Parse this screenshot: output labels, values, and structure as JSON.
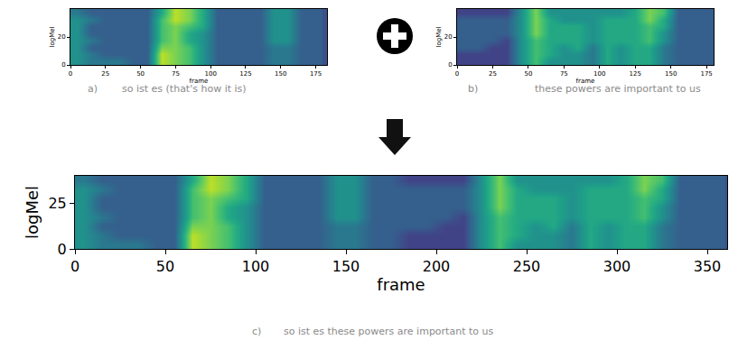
{
  "chart_data": [
    {
      "type": "heatmap",
      "caption_label": "a)",
      "caption": "so ist es (that's how it is)",
      "x_label": "frame",
      "y_label": "logMel",
      "xlim": [
        0,
        183
      ],
      "xticks": [
        0,
        25,
        50,
        75,
        100,
        125,
        150,
        175
      ],
      "ylim": [
        0,
        40
      ],
      "yticks": [
        0,
        20
      ],
      "zlim": [
        0,
        10
      ],
      "x": [
        5,
        15,
        25,
        35,
        45,
        55,
        65,
        75,
        85,
        95,
        105,
        115,
        125,
        135,
        145,
        155,
        165,
        175
      ],
      "y": [
        2.5,
        7.5,
        12.5,
        17.5,
        22.5,
        27.5,
        32.5,
        37.5
      ],
      "cells": [
        [
          5,
          4,
          4,
          4,
          3,
          3,
          9,
          8,
          7,
          5,
          3,
          3,
          3,
          3,
          4,
          4,
          3,
          3
        ],
        [
          5,
          4,
          3,
          3,
          3,
          3,
          9,
          8,
          7,
          5,
          3,
          3,
          3,
          3,
          4,
          4,
          3,
          3
        ],
        [
          5,
          3,
          3,
          3,
          3,
          3,
          8,
          8,
          7,
          5,
          3,
          3,
          3,
          3,
          4,
          4,
          3,
          3
        ],
        [
          5,
          4,
          3,
          3,
          3,
          3,
          7,
          8,
          6,
          5,
          3,
          3,
          3,
          3,
          5,
          5,
          3,
          3
        ],
        [
          5,
          3,
          3,
          3,
          3,
          3,
          7,
          8,
          6,
          5,
          3,
          3,
          3,
          3,
          5,
          5,
          3,
          3
        ],
        [
          5,
          3,
          3,
          3,
          3,
          3,
          7,
          8,
          7,
          6,
          3,
          3,
          3,
          3,
          5,
          5,
          3,
          3
        ],
        [
          5,
          4,
          3,
          3,
          3,
          3,
          7,
          9,
          8,
          6,
          3,
          3,
          3,
          3,
          5,
          5,
          3,
          3
        ],
        [
          4,
          3,
          3,
          3,
          3,
          3,
          6,
          9,
          8,
          6,
          3,
          3,
          3,
          3,
          5,
          5,
          3,
          3
        ]
      ]
    },
    {
      "type": "heatmap",
      "caption_label": "b)",
      "caption": "these powers are important to us",
      "x_label": "frame",
      "y_label": "logMel",
      "xlim": [
        0,
        180
      ],
      "xticks": [
        0,
        25,
        50,
        75,
        100,
        125,
        150,
        175
      ],
      "ylim": [
        0,
        40
      ],
      "yticks": [
        0,
        20
      ],
      "zlim": [
        0,
        10
      ],
      "x": [
        5,
        15,
        25,
        35,
        45,
        55,
        65,
        75,
        85,
        95,
        105,
        115,
        125,
        135,
        145,
        155,
        165,
        175
      ],
      "y": [
        2.5,
        7.5,
        12.5,
        17.5,
        22.5,
        27.5,
        32.5,
        37.5
      ],
      "cells": [
        [
          2,
          2,
          2,
          2,
          5,
          7,
          5,
          5,
          5,
          4,
          6,
          5,
          6,
          6,
          4,
          3,
          3,
          3
        ],
        [
          2,
          2,
          2,
          2,
          5,
          7,
          6,
          5,
          5,
          4,
          6,
          5,
          6,
          6,
          4,
          3,
          3,
          3
        ],
        [
          3,
          3,
          2,
          2,
          5,
          7,
          6,
          5,
          6,
          4,
          6,
          5,
          6,
          6,
          4,
          3,
          3,
          3
        ],
        [
          3,
          3,
          3,
          2,
          5,
          7,
          6,
          6,
          6,
          5,
          6,
          6,
          6,
          7,
          5,
          3,
          3,
          3
        ],
        [
          3,
          3,
          3,
          3,
          5,
          8,
          6,
          6,
          6,
          5,
          6,
          6,
          6,
          7,
          5,
          3,
          3,
          3
        ],
        [
          3,
          3,
          3,
          3,
          5,
          8,
          6,
          6,
          6,
          5,
          6,
          6,
          6,
          7,
          6,
          3,
          3,
          3
        ],
        [
          3,
          3,
          3,
          3,
          5,
          8,
          6,
          5,
          5,
          5,
          6,
          6,
          6,
          8,
          6,
          3,
          3,
          3
        ],
        [
          2,
          2,
          2,
          2,
          5,
          8,
          5,
          5,
          5,
          5,
          5,
          5,
          6,
          8,
          7,
          3,
          3,
          3
        ]
      ]
    },
    {
      "type": "heatmap",
      "caption_label": "c)",
      "caption": "so ist es these powers are important to us",
      "x_label": "frame",
      "y_label": "logMel",
      "xlim": [
        0,
        361
      ],
      "xticks": [
        0,
        50,
        100,
        150,
        200,
        250,
        300,
        350
      ],
      "ylim": [
        0,
        40
      ],
      "yticks": [
        0,
        25
      ],
      "zlim": [
        0,
        10
      ],
      "x": [
        5,
        15,
        25,
        35,
        45,
        55,
        65,
        75,
        85,
        95,
        105,
        115,
        125,
        135,
        145,
        155,
        165,
        175,
        185,
        195,
        205,
        215,
        225,
        235,
        245,
        255,
        265,
        275,
        285,
        295,
        305,
        315,
        325,
        335,
        345,
        355
      ],
      "y": [
        2.5,
        7.5,
        12.5,
        17.5,
        22.5,
        27.5,
        32.5,
        37.5
      ],
      "cells": [
        [
          5,
          4,
          4,
          4,
          3,
          3,
          9,
          8,
          7,
          5,
          3,
          3,
          3,
          3,
          4,
          4,
          3,
          3,
          2,
          2,
          2,
          2,
          5,
          7,
          5,
          5,
          5,
          4,
          6,
          5,
          6,
          6,
          4,
          3,
          3,
          3
        ],
        [
          5,
          4,
          3,
          3,
          3,
          3,
          9,
          8,
          7,
          5,
          3,
          3,
          3,
          3,
          4,
          4,
          3,
          3,
          2,
          2,
          2,
          2,
          5,
          7,
          6,
          5,
          5,
          4,
          6,
          5,
          6,
          6,
          4,
          3,
          3,
          3
        ],
        [
          5,
          3,
          3,
          3,
          3,
          3,
          8,
          8,
          7,
          5,
          3,
          3,
          3,
          3,
          4,
          4,
          3,
          3,
          3,
          3,
          2,
          2,
          5,
          7,
          6,
          5,
          6,
          4,
          6,
          5,
          6,
          6,
          4,
          3,
          3,
          3
        ],
        [
          5,
          4,
          3,
          3,
          3,
          3,
          7,
          8,
          6,
          5,
          3,
          3,
          3,
          3,
          5,
          5,
          3,
          3,
          3,
          3,
          3,
          2,
          5,
          7,
          6,
          6,
          6,
          5,
          6,
          6,
          6,
          7,
          5,
          3,
          3,
          3
        ],
        [
          5,
          3,
          3,
          3,
          3,
          3,
          7,
          8,
          6,
          5,
          3,
          3,
          3,
          3,
          5,
          5,
          3,
          3,
          3,
          3,
          3,
          3,
          5,
          8,
          6,
          6,
          6,
          5,
          6,
          6,
          6,
          7,
          5,
          3,
          3,
          3
        ],
        [
          5,
          3,
          3,
          3,
          3,
          3,
          7,
          8,
          7,
          6,
          3,
          3,
          3,
          3,
          5,
          5,
          3,
          3,
          3,
          3,
          3,
          3,
          5,
          8,
          6,
          6,
          6,
          5,
          6,
          6,
          6,
          7,
          6,
          3,
          3,
          3
        ],
        [
          5,
          4,
          3,
          3,
          3,
          3,
          7,
          9,
          8,
          6,
          3,
          3,
          3,
          3,
          5,
          5,
          3,
          3,
          3,
          3,
          3,
          3,
          5,
          8,
          6,
          5,
          5,
          5,
          6,
          6,
          6,
          8,
          6,
          3,
          3,
          3
        ],
        [
          4,
          3,
          3,
          3,
          3,
          3,
          6,
          9,
          8,
          6,
          3,
          3,
          3,
          3,
          5,
          5,
          3,
          3,
          2,
          2,
          2,
          2,
          5,
          8,
          5,
          5,
          5,
          5,
          5,
          5,
          6,
          8,
          7,
          3,
          3,
          3
        ]
      ]
    }
  ]
}
